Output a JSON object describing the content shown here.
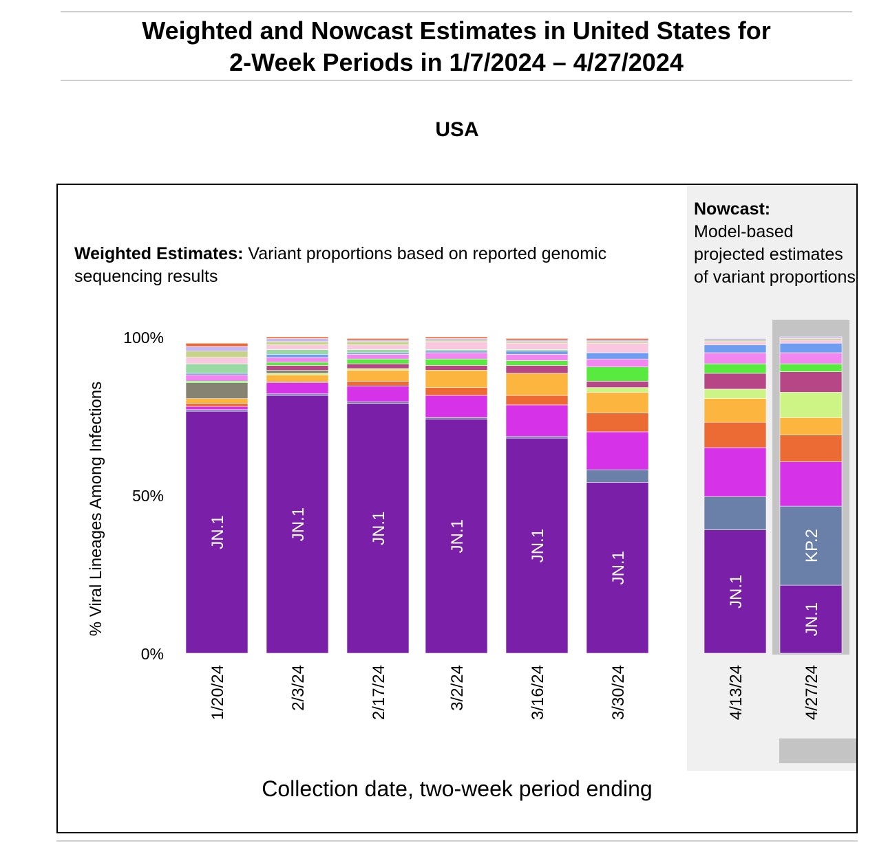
{
  "page": {
    "title_line1": "Weighted and Nowcast Estimates in United States for",
    "title_line2": "2-Week Periods in 1/7/2024 – 4/27/2024"
  },
  "chart_data": {
    "type": "bar",
    "stacked": true,
    "title": "USA",
    "ylabel": "% Viral Lineages Among Infections",
    "xlabel": "Collection date, two-week period ending",
    "ylim": [
      0,
      100
    ],
    "yticks": [
      "0%",
      "50%",
      "100%"
    ],
    "categories": [
      "1/20/24",
      "2/3/24",
      "2/17/24",
      "3/2/24",
      "3/16/24",
      "3/30/24",
      "4/13/24",
      "4/27/24"
    ],
    "weighted_note_label": "Weighted Estimates:",
    "weighted_note_text": "Variant proportions based on reported genomic sequencing results",
    "nowcast_note_label": "Nowcast:",
    "nowcast_note_text": "Model-based projected estimates of variant proportions",
    "nowcast_categories": [
      "4/13/24",
      "4/27/24"
    ],
    "highlighted_category": "4/27/24",
    "colors": {
      "JN.1": "#7a1fa8",
      "KP.2": "#6a80a8",
      "magenta": "#d633e8",
      "orange_red": "#ec6a33",
      "orange": "#fcb53f",
      "lime": "#cdf585",
      "maroon": "#b74687",
      "green": "#59ea40",
      "pink": "#f286f0",
      "blue": "#6f9ef0",
      "light_pink": "#f9c8e0",
      "gray": "#878372",
      "mint": "#98d9a4",
      "khaki": "#c8d38a",
      "lavender": "#c8b7f2"
    },
    "series": [
      {
        "name": "JN.1",
        "labeled": true,
        "color_key": "JN.1",
        "values": [
          76.5,
          81.5,
          79.0,
          74.0,
          68.0,
          54.0,
          39.0,
          21.5
        ]
      },
      {
        "name": "KP.2",
        "labeled": true,
        "color_key": "KP.2",
        "values": [
          0.5,
          0.5,
          0.5,
          0.5,
          0.5,
          4.0,
          10.5,
          25.0
        ]
      },
      {
        "color_key": "magenta",
        "values": [
          1.0,
          3.5,
          5.0,
          7.0,
          10.0,
          12.0,
          15.5,
          14.0
        ]
      },
      {
        "color_key": "orange_red",
        "values": [
          1.0,
          0.5,
          1.5,
          2.5,
          3.0,
          6.0,
          8.0,
          8.5
        ]
      },
      {
        "color_key": "orange",
        "values": [
          1.5,
          2.0,
          3.5,
          5.5,
          7.0,
          6.5,
          7.5,
          5.5
        ]
      },
      {
        "color_key": "lime",
        "values": [
          0,
          0.5,
          0.5,
          0,
          0,
          1.5,
          3.0,
          8.0
        ]
      },
      {
        "color_key": "gray",
        "values": [
          5.0,
          1.0,
          0,
          0,
          0,
          0,
          0,
          0
        ]
      },
      {
        "color_key": "maroon",
        "values": [
          0,
          1.5,
          1.5,
          1.5,
          2.5,
          2.0,
          5.0,
          6.5
        ]
      },
      {
        "color_key": "green",
        "values": [
          0.5,
          1.0,
          1.5,
          2.0,
          1.5,
          4.5,
          3.0,
          2.5
        ]
      },
      {
        "color_key": "pink",
        "values": [
          2.0,
          1.5,
          1.5,
          2.0,
          2.0,
          2.5,
          3.5,
          3.5
        ]
      },
      {
        "color_key": "blue",
        "values": [
          0.5,
          1.0,
          0.5,
          0.5,
          1.0,
          2.0,
          2.5,
          3.0
        ]
      },
      {
        "color_key": "mint",
        "values": [
          3.0,
          1.5,
          1.0,
          0.5,
          0.5,
          0,
          0,
          0
        ]
      },
      {
        "color_key": "light_pink",
        "values": [
          2.0,
          1.5,
          1.5,
          2.5,
          2.0,
          3.0,
          1.0,
          1.0
        ]
      },
      {
        "color_key": "khaki",
        "values": [
          2.0,
          1.0,
          1.0,
          0.5,
          0.5,
          0.5,
          0.5,
          0.5
        ]
      },
      {
        "color_key": "lavender",
        "values": [
          1.5,
          1.0,
          0.5,
          0.5,
          0.5,
          0.5,
          0.5,
          0.5
        ]
      },
      {
        "color_key": "orange_red",
        "values": [
          1.0,
          0.5,
          0.5,
          0.5,
          0.5,
          0.5,
          0,
          0
        ]
      }
    ]
  }
}
